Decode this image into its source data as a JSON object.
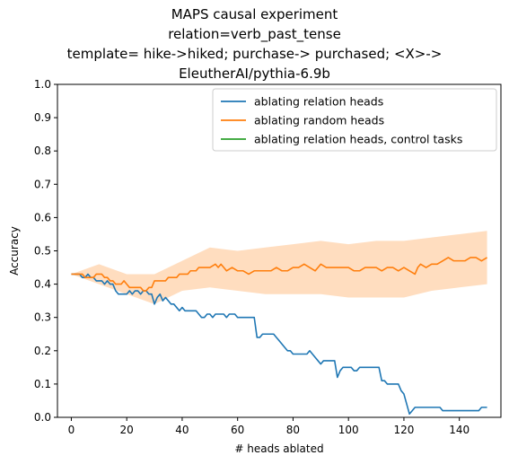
{
  "chart_data": {
    "type": "line",
    "title_lines": [
      "MAPS causal experiment",
      "relation=verb_past_tense",
      "template= hike->hiked; purchase-> purchased; <X>->",
      "EleutherAI/pythia-6.9b"
    ],
    "xlabel": "# heads ablated",
    "ylabel": "Accuracy",
    "xlim": [
      -5,
      155
    ],
    "ylim": [
      0,
      1
    ],
    "x_ticks": [
      0,
      20,
      40,
      60,
      80,
      100,
      120,
      140
    ],
    "y_ticks": [
      "0.0",
      "0.1",
      "0.2",
      "0.3",
      "0.4",
      "0.5",
      "0.6",
      "0.7",
      "0.8",
      "0.9",
      "1.0"
    ],
    "legend_position": "top-right",
    "series": [
      {
        "name": "ablating relation heads",
        "color": "#1f77b4",
        "points": [
          [
            0,
            0.43
          ],
          [
            3,
            0.43
          ],
          [
            4,
            0.42
          ],
          [
            5,
            0.42
          ],
          [
            6,
            0.43
          ],
          [
            7,
            0.42
          ],
          [
            8,
            0.42
          ],
          [
            9,
            0.41
          ],
          [
            10,
            0.41
          ],
          [
            11,
            0.41
          ],
          [
            12,
            0.4
          ],
          [
            13,
            0.41
          ],
          [
            14,
            0.4
          ],
          [
            15,
            0.4
          ],
          [
            16,
            0.38
          ],
          [
            17,
            0.37
          ],
          [
            18,
            0.37
          ],
          [
            19,
            0.37
          ],
          [
            20,
            0.37
          ],
          [
            21,
            0.38
          ],
          [
            22,
            0.37
          ],
          [
            23,
            0.38
          ],
          [
            24,
            0.38
          ],
          [
            25,
            0.37
          ],
          [
            26,
            0.38
          ],
          [
            27,
            0.38
          ],
          [
            28,
            0.37
          ],
          [
            29,
            0.37
          ],
          [
            30,
            0.34
          ],
          [
            31,
            0.36
          ],
          [
            32,
            0.37
          ],
          [
            33,
            0.35
          ],
          [
            34,
            0.36
          ],
          [
            35,
            0.35
          ],
          [
            36,
            0.34
          ],
          [
            37,
            0.34
          ],
          [
            38,
            0.33
          ],
          [
            39,
            0.32
          ],
          [
            40,
            0.33
          ],
          [
            41,
            0.32
          ],
          [
            42,
            0.32
          ],
          [
            45,
            0.32
          ],
          [
            46,
            0.31
          ],
          [
            47,
            0.3
          ],
          [
            48,
            0.3
          ],
          [
            49,
            0.31
          ],
          [
            50,
            0.31
          ],
          [
            51,
            0.3
          ],
          [
            52,
            0.31
          ],
          [
            55,
            0.31
          ],
          [
            56,
            0.3
          ],
          [
            57,
            0.31
          ],
          [
            59,
            0.31
          ],
          [
            60,
            0.3
          ],
          [
            66,
            0.3
          ],
          [
            67,
            0.24
          ],
          [
            68,
            0.24
          ],
          [
            69,
            0.25
          ],
          [
            73,
            0.25
          ],
          [
            74,
            0.24
          ],
          [
            75,
            0.23
          ],
          [
            76,
            0.22
          ],
          [
            77,
            0.21
          ],
          [
            78,
            0.2
          ],
          [
            79,
            0.2
          ],
          [
            80,
            0.19
          ],
          [
            85,
            0.19
          ],
          [
            86,
            0.2
          ],
          [
            87,
            0.19
          ],
          [
            88,
            0.18
          ],
          [
            89,
            0.17
          ],
          [
            90,
            0.16
          ],
          [
            91,
            0.17
          ],
          [
            95,
            0.17
          ],
          [
            96,
            0.12
          ],
          [
            97,
            0.14
          ],
          [
            98,
            0.15
          ],
          [
            101,
            0.15
          ],
          [
            102,
            0.14
          ],
          [
            103,
            0.14
          ],
          [
            104,
            0.15
          ],
          [
            111,
            0.15
          ],
          [
            112,
            0.11
          ],
          [
            113,
            0.11
          ],
          [
            114,
            0.1
          ],
          [
            118,
            0.1
          ],
          [
            119,
            0.08
          ],
          [
            120,
            0.07
          ],
          [
            121,
            0.04
          ],
          [
            122,
            0.01
          ],
          [
            123,
            0.02
          ],
          [
            124,
            0.03
          ],
          [
            133,
            0.03
          ],
          [
            134,
            0.02
          ],
          [
            147,
            0.02
          ],
          [
            148,
            0.03
          ],
          [
            150,
            0.03
          ]
        ]
      },
      {
        "name": "ablating random heads",
        "color": "#ff7f0e",
        "band_color": "#ffd9b8",
        "points": [
          [
            0,
            0.43
          ],
          [
            4,
            0.43
          ],
          [
            5,
            0.42
          ],
          [
            6,
            0.42
          ],
          [
            7,
            0.42
          ],
          [
            8,
            0.42
          ],
          [
            9,
            0.43
          ],
          [
            10,
            0.43
          ],
          [
            11,
            0.43
          ],
          [
            12,
            0.42
          ],
          [
            13,
            0.42
          ],
          [
            14,
            0.41
          ],
          [
            15,
            0.41
          ],
          [
            16,
            0.4
          ],
          [
            17,
            0.4
          ],
          [
            18,
            0.4
          ],
          [
            19,
            0.41
          ],
          [
            20,
            0.4
          ],
          [
            21,
            0.39
          ],
          [
            22,
            0.39
          ],
          [
            23,
            0.39
          ],
          [
            24,
            0.39
          ],
          [
            25,
            0.39
          ],
          [
            26,
            0.38
          ],
          [
            27,
            0.38
          ],
          [
            28,
            0.39
          ],
          [
            29,
            0.39
          ],
          [
            30,
            0.41
          ],
          [
            31,
            0.41
          ],
          [
            32,
            0.41
          ],
          [
            33,
            0.41
          ],
          [
            34,
            0.41
          ],
          [
            35,
            0.42
          ],
          [
            36,
            0.42
          ],
          [
            37,
            0.42
          ],
          [
            38,
            0.42
          ],
          [
            39,
            0.43
          ],
          [
            40,
            0.43
          ],
          [
            42,
            0.43
          ],
          [
            43,
            0.44
          ],
          [
            44,
            0.44
          ],
          [
            45,
            0.44
          ],
          [
            46,
            0.45
          ],
          [
            48,
            0.45
          ],
          [
            50,
            0.45
          ],
          [
            52,
            0.46
          ],
          [
            53,
            0.45
          ],
          [
            54,
            0.46
          ],
          [
            55,
            0.45
          ],
          [
            56,
            0.44
          ],
          [
            58,
            0.45
          ],
          [
            60,
            0.44
          ],
          [
            62,
            0.44
          ],
          [
            64,
            0.43
          ],
          [
            66,
            0.44
          ],
          [
            68,
            0.44
          ],
          [
            70,
            0.44
          ],
          [
            72,
            0.44
          ],
          [
            74,
            0.45
          ],
          [
            76,
            0.44
          ],
          [
            78,
            0.44
          ],
          [
            80,
            0.45
          ],
          [
            82,
            0.45
          ],
          [
            84,
            0.46
          ],
          [
            86,
            0.45
          ],
          [
            88,
            0.44
          ],
          [
            90,
            0.46
          ],
          [
            92,
            0.45
          ],
          [
            94,
            0.45
          ],
          [
            96,
            0.45
          ],
          [
            98,
            0.45
          ],
          [
            100,
            0.45
          ],
          [
            102,
            0.44
          ],
          [
            104,
            0.44
          ],
          [
            106,
            0.45
          ],
          [
            108,
            0.45
          ],
          [
            110,
            0.45
          ],
          [
            112,
            0.44
          ],
          [
            114,
            0.45
          ],
          [
            116,
            0.45
          ],
          [
            118,
            0.44
          ],
          [
            120,
            0.45
          ],
          [
            122,
            0.44
          ],
          [
            124,
            0.43
          ],
          [
            125,
            0.45
          ],
          [
            126,
            0.46
          ],
          [
            128,
            0.45
          ],
          [
            130,
            0.46
          ],
          [
            132,
            0.46
          ],
          [
            134,
            0.47
          ],
          [
            136,
            0.48
          ],
          [
            138,
            0.47
          ],
          [
            140,
            0.47
          ],
          [
            142,
            0.47
          ],
          [
            144,
            0.48
          ],
          [
            146,
            0.48
          ],
          [
            148,
            0.47
          ],
          [
            150,
            0.48
          ]
        ],
        "band": [
          [
            0,
            0.43,
            0.43
          ],
          [
            10,
            0.4,
            0.46
          ],
          [
            20,
            0.37,
            0.43
          ],
          [
            30,
            0.34,
            0.43
          ],
          [
            40,
            0.38,
            0.47
          ],
          [
            50,
            0.39,
            0.51
          ],
          [
            60,
            0.38,
            0.5
          ],
          [
            70,
            0.37,
            0.51
          ],
          [
            80,
            0.37,
            0.52
          ],
          [
            90,
            0.37,
            0.53
          ],
          [
            100,
            0.36,
            0.52
          ],
          [
            110,
            0.36,
            0.53
          ],
          [
            120,
            0.36,
            0.53
          ],
          [
            130,
            0.38,
            0.54
          ],
          [
            140,
            0.39,
            0.55
          ],
          [
            150,
            0.4,
            0.56
          ]
        ]
      },
      {
        "name": "ablating relation heads, control tasks",
        "color": "#2ca02c",
        "points": []
      }
    ]
  }
}
